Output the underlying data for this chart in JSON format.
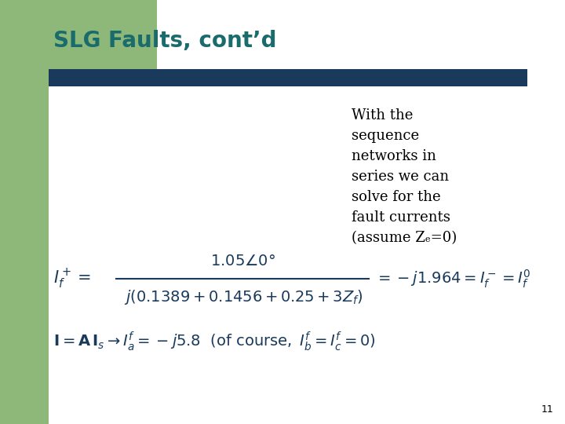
{
  "title": "SLG Faults, cont’d",
  "title_color": "#1a6b6b",
  "title_fontsize": 20,
  "bg_color": "#ffffff",
  "left_bar_color": "#8db87a",
  "top_bar_color": "#1a3a5c",
  "text_color": "#1a3a5c",
  "slide_number": "11",
  "right_text_lines": [
    "With the",
    "sequence",
    "networks in",
    "series we can",
    "solve for the",
    "fault currents",
    "(assume Zₑ=0)"
  ]
}
